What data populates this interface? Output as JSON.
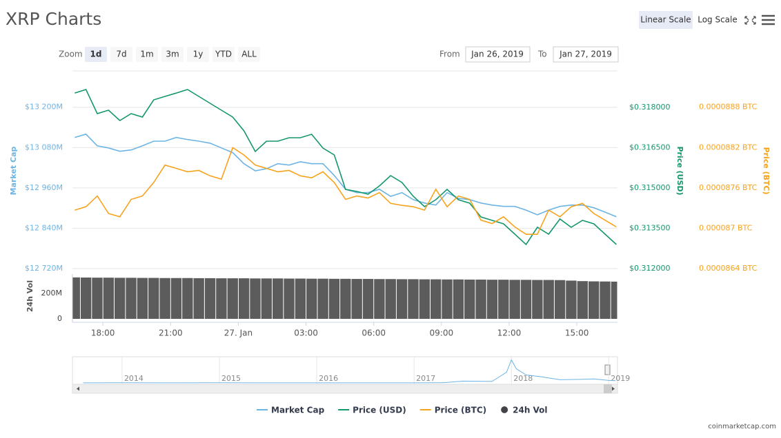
{
  "header": {
    "title": "XRP Charts",
    "scale_buttons": [
      "Linear Scale",
      "Log Scale"
    ],
    "scale_selected": "Linear Scale"
  },
  "zoom": {
    "label": "Zoom",
    "options": [
      "1d",
      "7d",
      "1m",
      "3m",
      "1y",
      "YTD",
      "ALL"
    ],
    "selected": "1d"
  },
  "range": {
    "from_label": "From",
    "from": "Jan 26, 2019",
    "to_label": "To",
    "to": "Jan 27, 2019"
  },
  "footer": "coinmarketcap.com",
  "chart_data": [
    {
      "type": "line",
      "x": [
        16.75,
        17.25,
        17.75,
        18.25,
        18.75,
        19.25,
        19.75,
        20.25,
        20.75,
        21.25,
        21.75,
        22.25,
        22.75,
        23.25,
        23.75,
        24.25,
        24.75,
        25.25,
        25.75,
        26.25,
        26.75,
        27.25,
        27.75,
        28.25,
        28.75,
        29.25,
        29.75,
        30.25,
        30.75,
        31.25,
        31.75,
        32.25,
        32.75,
        33.25,
        33.75,
        34.25,
        34.75,
        35.25,
        35.75,
        36.25,
        36.75,
        37.25,
        37.75,
        38.25,
        38.75,
        39.25,
        39.75,
        40.25,
        40.75
      ],
      "xlim": [
        16.65,
        40.8
      ],
      "xticks": [
        {
          "value": 18,
          "label": "18:00"
        },
        {
          "value": 21,
          "label": "21:00"
        },
        {
          "value": 24,
          "label": "27. Jan"
        },
        {
          "value": 27,
          "label": "03:00"
        },
        {
          "value": 30,
          "label": "06:00"
        },
        {
          "value": 33,
          "label": "09:00"
        },
        {
          "value": 36,
          "label": "12:00"
        },
        {
          "value": 39,
          "label": "15:00"
        }
      ],
      "y_label": "Market Cap",
      "y2_label": "Price (USD)",
      "y3_label": "Price (BTC)",
      "ylim": [
        12720,
        13308
      ],
      "yticks": [
        {
          "value": 13200,
          "label": "$13 200M"
        },
        {
          "value": 13080,
          "label": "$13 080M"
        },
        {
          "value": 12960,
          "label": "$12 960M"
        },
        {
          "value": 12840,
          "label": "$12 840M"
        },
        {
          "value": 12720,
          "label": "$12 720M"
        }
      ],
      "y2lim": [
        0.312,
        0.31936
      ],
      "y2ticks": [
        {
          "value": 0.318,
          "label": "$0.318000"
        },
        {
          "value": 0.3165,
          "label": "$0.316500"
        },
        {
          "value": 0.315,
          "label": "$0.315000"
        },
        {
          "value": 0.3135,
          "label": "$0.313500"
        },
        {
          "value": 0.312,
          "label": "$0.312000"
        }
      ],
      "y3lim": [
        8.64e-05,
        8.934e-05
      ],
      "y3ticks": [
        {
          "value": 8.88e-05,
          "label": "0.0000888 BTC"
        },
        {
          "value": 8.82e-05,
          "label": "0.0000882 BTC"
        },
        {
          "value": 8.76e-05,
          "label": "0.0000876 BTC"
        },
        {
          "value": 8.7e-05,
          "label": "0.000087 BTC"
        },
        {
          "value": 8.64e-05,
          "label": "0.0000864 BTC"
        }
      ],
      "grid": true,
      "legend": "bottom",
      "series": [
        {
          "name": "Market Cap",
          "color": "#6cb4e4",
          "axis": "y",
          "values": [
            13110,
            13120,
            13085,
            13079,
            13069,
            13073,
            13085,
            13099,
            13099,
            13110,
            13104,
            13099,
            13093,
            13079,
            13065,
            13032,
            13011,
            13017,
            13032,
            13028,
            13038,
            13032,
            13032,
            12997,
            12956,
            12946,
            12946,
            12956,
            12935,
            12946,
            12925,
            12915,
            12909,
            12946,
            12929,
            12925,
            12915,
            12909,
            12905,
            12905,
            12894,
            12880,
            12894,
            12905,
            12909,
            12909,
            12901,
            12888,
            12874
          ]
        },
        {
          "name": "Price (USD)",
          "color": "#14966c",
          "axis": "y2",
          "values": [
            0.318538,
            0.318667,
            0.317769,
            0.317897,
            0.317513,
            0.317769,
            0.317641,
            0.318282,
            0.31841,
            0.318538,
            0.318667,
            0.31841,
            0.318154,
            0.317897,
            0.317641,
            0.317128,
            0.316359,
            0.316744,
            0.316744,
            0.316872,
            0.316872,
            0.317,
            0.316487,
            0.316231,
            0.314949,
            0.314872,
            0.314769,
            0.315077,
            0.315462,
            0.315205,
            0.314692,
            0.314308,
            0.314564,
            0.314949,
            0.314564,
            0.314436,
            0.313923,
            0.313795,
            0.313667,
            0.313282,
            0.312897,
            0.313538,
            0.313282,
            0.313846,
            0.313538,
            0.313795,
            0.313667,
            0.313282,
            0.312897
          ]
        },
        {
          "name": "Price (BTC)",
          "color": "#f7a21b",
          "axis": "y3",
          "values": [
            8.727e-05,
            8.732e-05,
            8.748e-05,
            8.722e-05,
            8.717e-05,
            8.743e-05,
            8.748e-05,
            8.768e-05,
            8.794e-05,
            8.789e-05,
            8.784e-05,
            8.786e-05,
            8.778e-05,
            8.773e-05,
            8.82e-05,
            8.809e-05,
            8.794e-05,
            8.789e-05,
            8.784e-05,
            8.786e-05,
            8.778e-05,
            8.775e-05,
            8.784e-05,
            8.768e-05,
            8.743e-05,
            8.748e-05,
            8.745e-05,
            8.753e-05,
            8.737e-05,
            8.734e-05,
            8.732e-05,
            8.727e-05,
            8.758e-05,
            8.732e-05,
            8.748e-05,
            8.743e-05,
            8.712e-05,
            8.707e-05,
            8.717e-05,
            8.702e-05,
            8.691e-05,
            8.691e-05,
            8.727e-05,
            8.717e-05,
            8.732e-05,
            8.737e-05,
            8.722e-05,
            8.712e-05,
            8.702e-05
          ]
        }
      ],
      "volume": {
        "name": "24h Vol",
        "type": "bar",
        "color": "#5c5c5c",
        "ylim": [
          0,
          351
        ],
        "yticks": [
          0,
          {
            "value": 200,
            "label": "200M"
          }
        ],
        "values": [
          325,
          324,
          323,
          323,
          322,
          322,
          321,
          321,
          320,
          320,
          320,
          319,
          319,
          318,
          318,
          318,
          317,
          317,
          317,
          316,
          316,
          315,
          315,
          314,
          314,
          313,
          313,
          312,
          312,
          311,
          311,
          310,
          310,
          309,
          309,
          308,
          308,
          307,
          307,
          306,
          306,
          305,
          305,
          304,
          300,
          296,
          294,
          293,
          292
        ]
      }
    },
    {
      "type": "area",
      "color": "#6cb4e4",
      "x": [
        2013.6,
        2014,
        2014.5,
        2015,
        2015.5,
        2016,
        2016.5,
        2017,
        2017.3,
        2017.5,
        2017.8,
        2017.95,
        2018.0,
        2018.05,
        2018.15,
        2018.3,
        2018.5,
        2018.7,
        2018.85,
        2019.0,
        2019.07
      ],
      "values": [
        0.5,
        0.6,
        0.5,
        0.6,
        0.3,
        0.2,
        0.3,
        0.3,
        1,
        10,
        8,
        60,
        130,
        80,
        45,
        35,
        18,
        20,
        22,
        14,
        13
      ],
      "xlim": [
        2013.49,
        2019.09
      ],
      "ylim": [
        0,
        140
      ],
      "xticks": [
        2014,
        2015,
        2016,
        2017,
        2018,
        2019
      ]
    }
  ]
}
